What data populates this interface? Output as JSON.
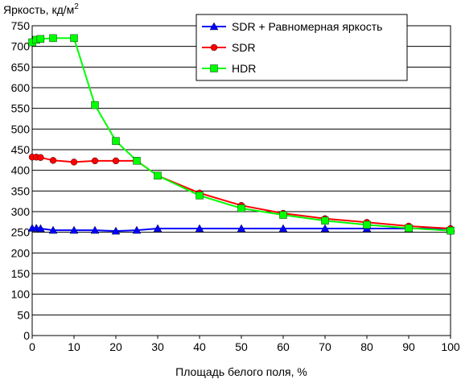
{
  "chart_data": {
    "type": "line",
    "ylabel": "Яркость, кд/м",
    "ylabel_sup": "2",
    "xlabel": "Площадь белого поля, %",
    "xlim": [
      0,
      100
    ],
    "ylim": [
      0,
      750
    ],
    "xticks": [
      "0",
      "10",
      "20",
      "30",
      "40",
      "50",
      "60",
      "70",
      "80",
      "90",
      "100"
    ],
    "yticks": [
      "0",
      "50",
      "100",
      "150",
      "200",
      "250",
      "300",
      "350",
      "400",
      "450",
      "500",
      "550",
      "600",
      "650",
      "700",
      "750"
    ],
    "grid": "horizontal",
    "legend_position": "top-right",
    "series": [
      {
        "name": "SDR + Равномерная яркость",
        "color": "#0000ff",
        "marker": "triangle",
        "points": [
          [
            0,
            260
          ],
          [
            1,
            260
          ],
          [
            2,
            259
          ],
          [
            5,
            255
          ],
          [
            10,
            255
          ],
          [
            15,
            255
          ],
          [
            20,
            253
          ],
          [
            25,
            255
          ],
          [
            30,
            259
          ],
          [
            40,
            259
          ],
          [
            50,
            259
          ],
          [
            60,
            259
          ],
          [
            70,
            259
          ],
          [
            80,
            259
          ],
          [
            90,
            259
          ],
          [
            100,
            259
          ]
        ]
      },
      {
        "name": "SDR",
        "color": "#ff0000",
        "marker": "circle",
        "points": [
          [
            0,
            432
          ],
          [
            1,
            432
          ],
          [
            2,
            431
          ],
          [
            5,
            424
          ],
          [
            10,
            420
          ],
          [
            15,
            423
          ],
          [
            20,
            423
          ],
          [
            25,
            423
          ],
          [
            30,
            387
          ],
          [
            40,
            345
          ],
          [
            50,
            315
          ],
          [
            60,
            296
          ],
          [
            70,
            283
          ],
          [
            80,
            274
          ],
          [
            90,
            265
          ],
          [
            100,
            259
          ]
        ]
      },
      {
        "name": "HDR",
        "color": "#00ff00",
        "marker": "square",
        "points": [
          [
            0,
            710
          ],
          [
            1,
            716
          ],
          [
            2,
            718
          ],
          [
            5,
            720
          ],
          [
            10,
            720
          ],
          [
            15,
            558
          ],
          [
            20,
            471
          ],
          [
            25,
            423
          ],
          [
            30,
            387
          ],
          [
            40,
            339
          ],
          [
            50,
            308
          ],
          [
            60,
            292
          ],
          [
            70,
            278
          ],
          [
            80,
            268
          ],
          [
            90,
            260
          ],
          [
            100,
            254
          ]
        ]
      }
    ]
  }
}
